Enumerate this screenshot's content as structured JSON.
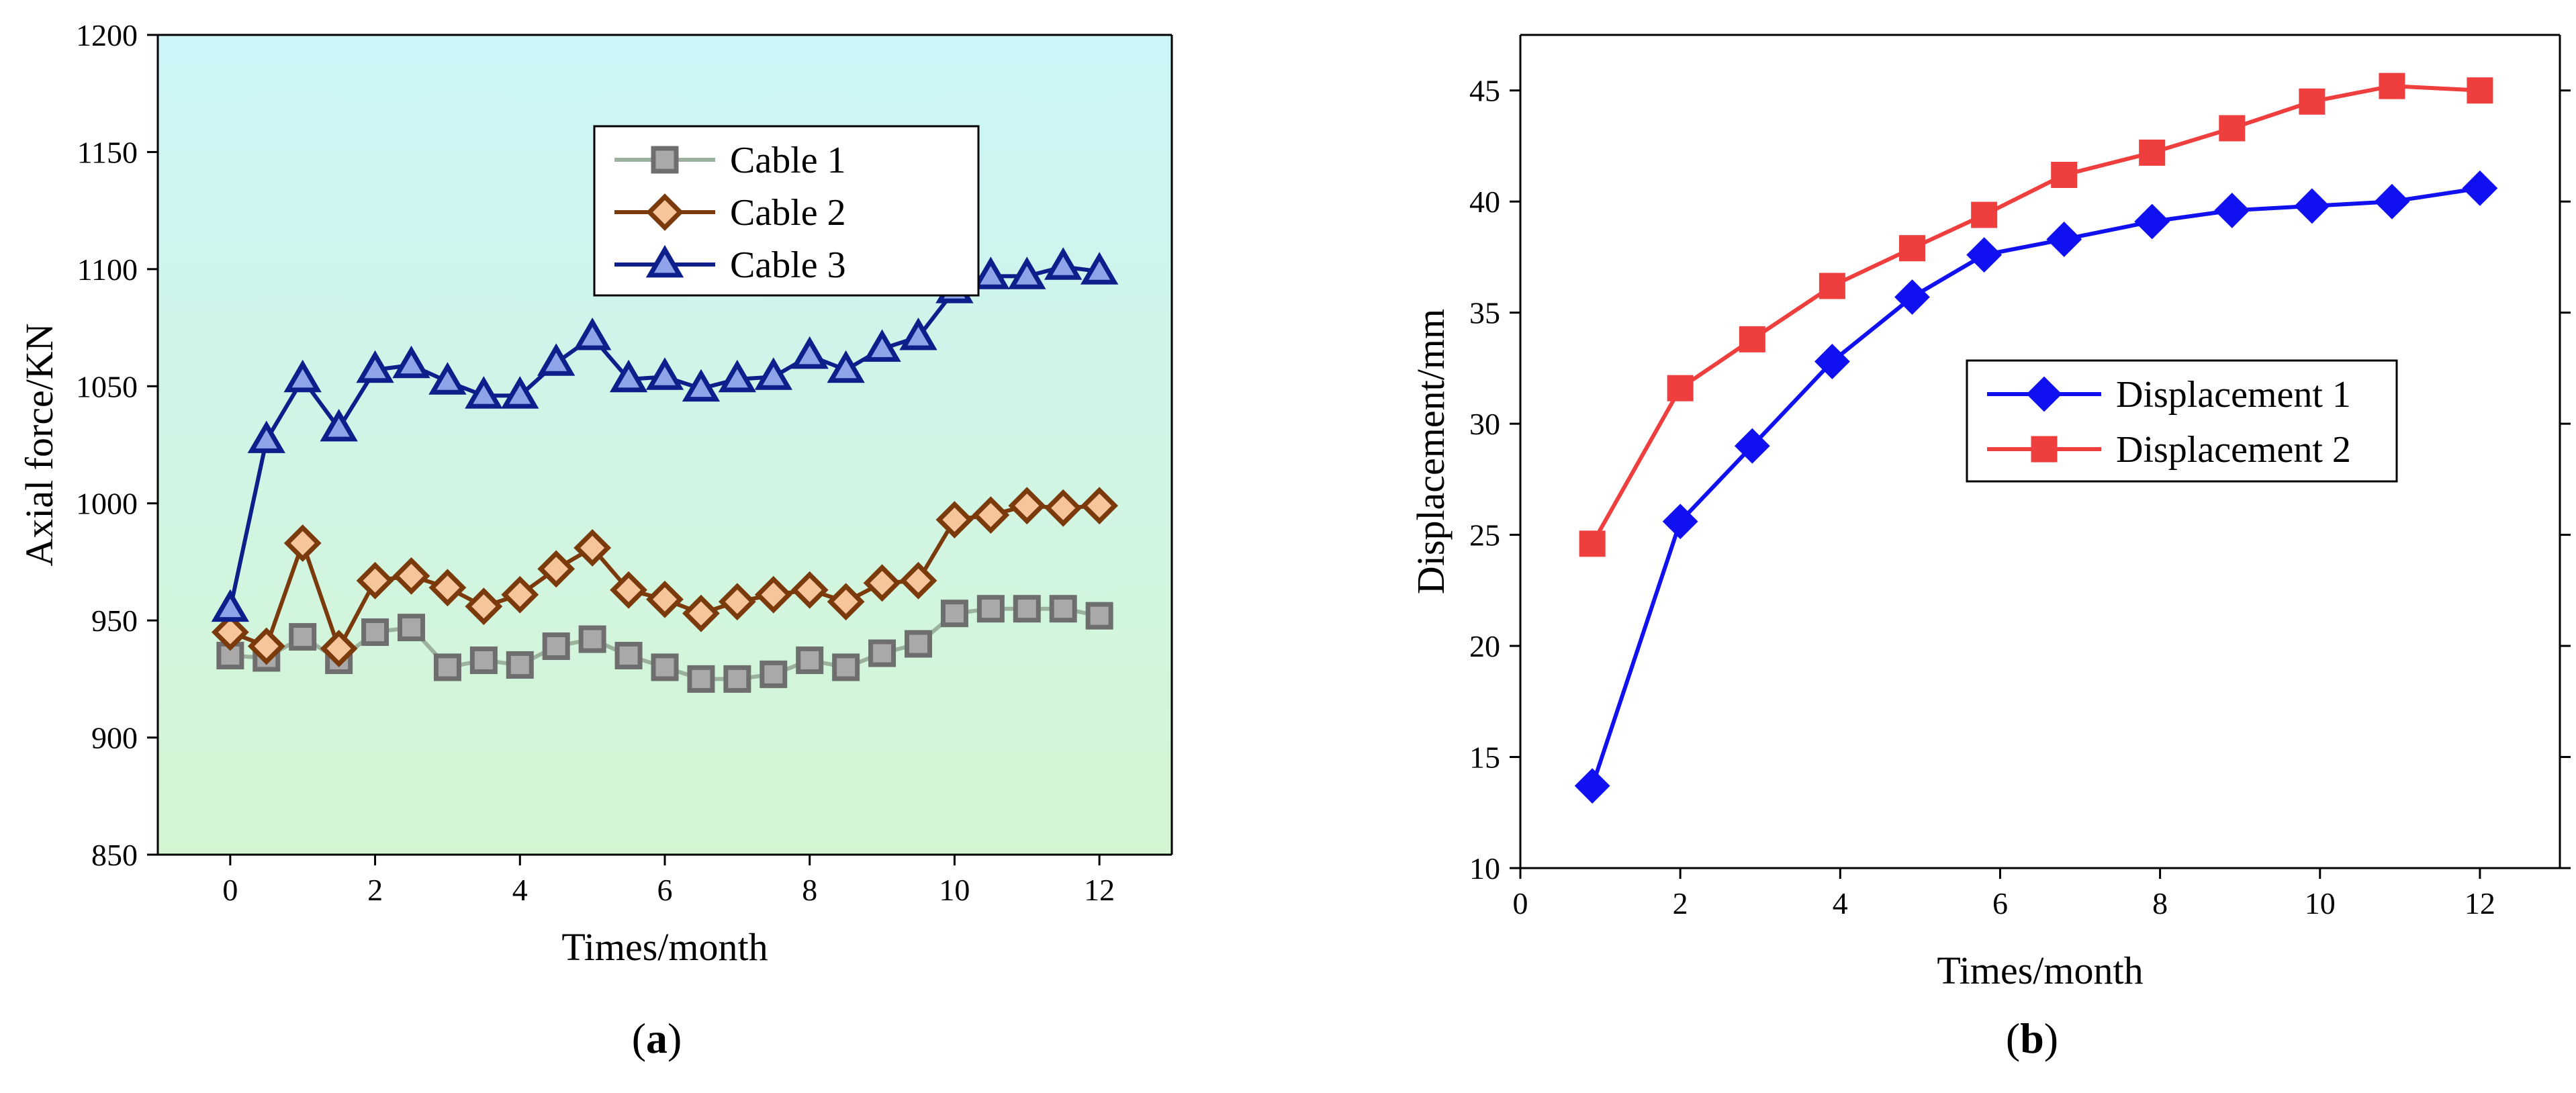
{
  "chart_data": [
    {
      "type": "line",
      "panel_label": "(a)",
      "panel_letter": "a",
      "title": "",
      "xlabel": "Times/month",
      "ylabel": "Axial force/KN",
      "xlim": [
        -1,
        13
      ],
      "ylim": [
        850,
        1200
      ],
      "xticks": [
        0,
        2,
        4,
        6,
        8,
        10,
        12
      ],
      "yticks": [
        850,
        900,
        950,
        1000,
        1050,
        1100,
        1150,
        1200
      ],
      "background_gradient": [
        "#ccf5f8",
        "#d4f5d2"
      ],
      "legend_position": "upper-center",
      "x": [
        0,
        0.5,
        1,
        1.5,
        2,
        2.5,
        3,
        3.5,
        4,
        4.5,
        5,
        5.5,
        6,
        6.5,
        7,
        7.5,
        8,
        8.5,
        9,
        9.5,
        10,
        10.5,
        11,
        11.5,
        12
      ],
      "series": [
        {
          "name": "Cable 1",
          "marker": "square",
          "line_color": "#9cb09e",
          "marker_fill": "#a9a9a9",
          "marker_edge": "#6e6e6e",
          "values": [
            935,
            934,
            943,
            933,
            945,
            947,
            930,
            933,
            931,
            939,
            942,
            935,
            930,
            925,
            925,
            927,
            933,
            930,
            936,
            940,
            953,
            955,
            955,
            955,
            952
          ]
        },
        {
          "name": "Cable 2",
          "marker": "diamond",
          "line_color": "#7a3a0c",
          "marker_fill": "#f7c59b",
          "marker_edge": "#7a3a0c",
          "values": [
            945,
            939,
            983,
            938,
            967,
            969,
            964,
            956,
            961,
            972,
            981,
            963,
            959,
            953,
            958,
            961,
            963,
            958,
            966,
            967,
            993,
            995,
            999,
            998,
            999
          ]
        },
        {
          "name": "Cable 3",
          "marker": "triangle",
          "line_color": "#0d1f8a",
          "marker_fill": "#8fa4e8",
          "marker_edge": "#0d1f8a",
          "values": [
            955,
            1027,
            1053,
            1032,
            1057,
            1059,
            1052,
            1046,
            1046,
            1060,
            1071,
            1053,
            1054,
            1049,
            1053,
            1054,
            1063,
            1057,
            1066,
            1071,
            1091,
            1097,
            1097,
            1101,
            1099
          ]
        }
      ]
    },
    {
      "type": "line",
      "panel_label": "(b)",
      "panel_letter": "b",
      "title": "",
      "xlabel": "Times/month",
      "ylabel": "Displacement/mm",
      "xlim": [
        0,
        13
      ],
      "ylim": [
        10,
        47.5
      ],
      "xticks": [
        0,
        2,
        4,
        6,
        8,
        10,
        12
      ],
      "yticks": [
        10,
        15,
        20,
        25,
        30,
        35,
        40,
        45
      ],
      "legend_position": "center-right",
      "x": [
        0.9,
        2,
        2.9,
        3.9,
        4.9,
        5.8,
        6.8,
        7.9,
        8.9,
        9.9,
        10.9,
        12
      ],
      "series": [
        {
          "name": "Displacement 1",
          "marker": "diamond",
          "line_color": "#1010f0",
          "marker_fill": "#1010f0",
          "marker_edge": "#1010f0",
          "values": [
            13.7,
            25.6,
            29.0,
            32.8,
            35.7,
            37.6,
            38.3,
            39.1,
            39.6,
            39.8,
            40.0,
            40.6
          ]
        },
        {
          "name": "Displacement 2",
          "marker": "square",
          "line_color": "#ef3e3e",
          "marker_fill": "#ef3e3e",
          "marker_edge": "#ef3e3e",
          "values": [
            24.6,
            31.6,
            33.8,
            36.2,
            37.9,
            39.4,
            41.2,
            42.2,
            43.3,
            44.5,
            45.2,
            45.0
          ]
        }
      ]
    }
  ]
}
